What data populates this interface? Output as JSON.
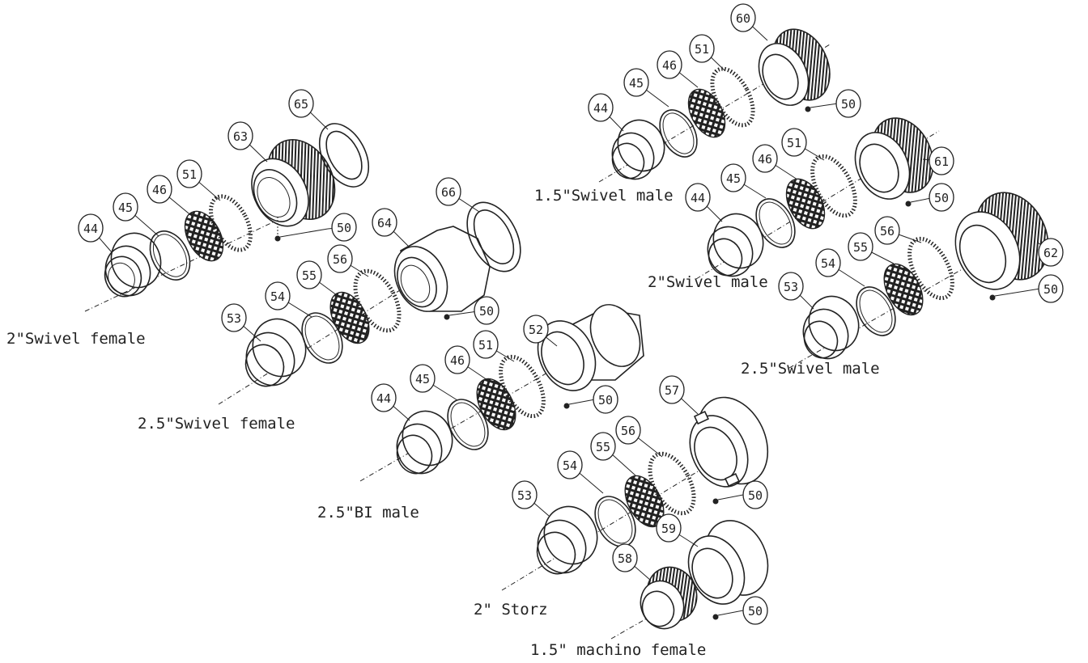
{
  "assemblies": [
    {
      "id": "swivel-female-2",
      "label": "2\"Swivel female"
    },
    {
      "id": "swivel-female-25",
      "label": "2.5\"Swivel female"
    },
    {
      "id": "bi-male-25",
      "label": "2.5\"BI male"
    },
    {
      "id": "storz-2",
      "label": "2\" Storz"
    },
    {
      "id": "machino-female-15",
      "label": "1.5\" machino  female"
    },
    {
      "id": "swivel-male-15",
      "label": "1.5\"Swivel male"
    },
    {
      "id": "swivel-male-2",
      "label": "2\"Swivel male"
    },
    {
      "id": "swivel-male-25",
      "label": "2.5\"Swivel male"
    }
  ],
  "callouts": [
    "44",
    "45",
    "46",
    "50",
    "51",
    "52",
    "53",
    "54",
    "55",
    "56",
    "57",
    "58",
    "59",
    "60",
    "61",
    "62",
    "63",
    "64",
    "65",
    "66"
  ]
}
